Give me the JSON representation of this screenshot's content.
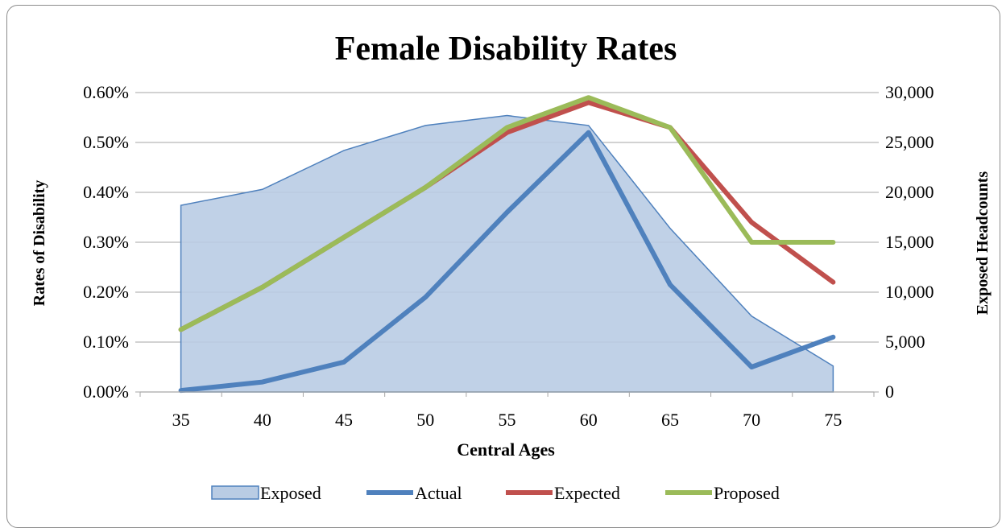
{
  "chart_data": {
    "type": "line",
    "title": "Female Disability Rates",
    "xlabel": "Central Ages",
    "ylabel": "Rates of Disability",
    "y2label": "Exposed Headcounts",
    "categories": [
      "35",
      "40",
      "45",
      "50",
      "55",
      "60",
      "65",
      "70",
      "75"
    ],
    "y_ticks": [
      "0.00%",
      "0.10%",
      "0.20%",
      "0.30%",
      "0.40%",
      "0.50%",
      "0.60%"
    ],
    "y2_ticks": [
      "0",
      "5,000",
      "10,000",
      "15,000",
      "20,000",
      "25,000",
      "30,000"
    ],
    "ylim": [
      0,
      0.006
    ],
    "y2lim": [
      0,
      30000
    ],
    "grid": true,
    "legend_position": "bottom",
    "series": [
      {
        "name": "Exposed",
        "kind": "area",
        "axis": "secondary",
        "color": "#4f81bd",
        "fill": "#b9cce4",
        "values": [
          18700,
          20300,
          24200,
          26700,
          27700,
          26700,
          16400,
          7600,
          2600
        ]
      },
      {
        "name": "Actual",
        "kind": "line",
        "axis": "primary",
        "color": "#4f81bd",
        "values": [
          3e-05,
          0.0002,
          0.0006,
          0.0019,
          0.0036,
          0.0052,
          0.00215,
          0.0005,
          0.0011
        ]
      },
      {
        "name": "Expected",
        "kind": "line",
        "axis": "primary",
        "color": "#c0504d",
        "values": [
          0.00125,
          0.0021,
          0.0031,
          0.0041,
          0.0052,
          0.0058,
          0.0053,
          0.0034,
          0.0022
        ]
      },
      {
        "name": "Proposed",
        "kind": "line",
        "axis": "primary",
        "color": "#9bbb59",
        "values": [
          0.00125,
          0.0021,
          0.0031,
          0.0041,
          0.0053,
          0.0059,
          0.0053,
          0.003,
          0.003
        ]
      }
    ]
  }
}
